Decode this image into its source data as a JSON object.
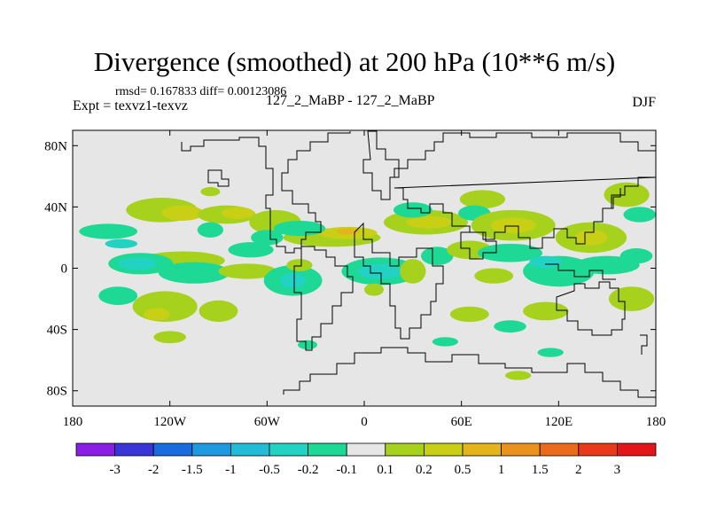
{
  "chart_data": {
    "type": "heatmap",
    "title": "Divergence (smoothed) at 200 hPa (10**6 m/s)",
    "stats": "rmsd= 0.167833 diff= 0.00123086",
    "experiment": "Expt = texvz1-texvz",
    "comparison": "127_2_MaBP - 127_2_MaBP",
    "season": "DJF",
    "xlim": [
      -180,
      180
    ],
    "ylim": [
      -90,
      90
    ],
    "x_ticks": [
      {
        "value": -180,
        "label": "180"
      },
      {
        "value": -120,
        "label": "120W"
      },
      {
        "value": -60,
        "label": "60W"
      },
      {
        "value": 0,
        "label": "0"
      },
      {
        "value": 60,
        "label": "60E"
      },
      {
        "value": 120,
        "label": "120E"
      },
      {
        "value": 180,
        "label": "180"
      }
    ],
    "y_ticks": [
      {
        "value": 80,
        "label": "80N"
      },
      {
        "value": 40,
        "label": "40N"
      },
      {
        "value": 0,
        "label": "0"
      },
      {
        "value": -40,
        "label": "40S"
      },
      {
        "value": -80,
        "label": "80S"
      }
    ],
    "colorbar": {
      "colors": [
        "#8a1ee6",
        "#3a35d6",
        "#1a6be0",
        "#1f9ae0",
        "#22bcd6",
        "#22d2c2",
        "#1ed995",
        "#e6e6e6",
        "#a6d21e",
        "#c9cf14",
        "#e3b41b",
        "#eb911e",
        "#ec6a1c",
        "#e83a1a",
        "#e3141a"
      ],
      "labels": [
        "-3",
        "-2",
        "-1.5",
        "-1",
        "-0.5",
        "-0.2",
        "-0.1",
        "0.1",
        "0.2",
        "0.5",
        "1",
        "1.5",
        "2",
        "3"
      ]
    },
    "features": [
      {
        "level": "-0.1",
        "lon": -158,
        "lat": 24,
        "rx": 18,
        "ry": 5
      },
      {
        "level": "-0.2",
        "lon": -150,
        "lat": 16,
        "rx": 10,
        "ry": 3
      },
      {
        "level": "-0.1",
        "lon": -152,
        "lat": -18,
        "rx": 12,
        "ry": 6
      },
      {
        "level": "0.1",
        "lon": -125,
        "lat": 38,
        "rx": 22,
        "ry": 8
      },
      {
        "level": "0.2",
        "lon": -112,
        "lat": 36,
        "rx": 13,
        "ry": 5
      },
      {
        "level": "0.1",
        "lon": -112,
        "lat": 5,
        "rx": 26,
        "ry": 6
      },
      {
        "level": "-0.1",
        "lon": -138,
        "lat": 3,
        "rx": 20,
        "ry": 7
      },
      {
        "level": "-0.2",
        "lon": -140,
        "lat": 3,
        "rx": 12,
        "ry": 4
      },
      {
        "level": "-0.2",
        "lon": -105,
        "lat": -5,
        "rx": 10,
        "ry": 4
      },
      {
        "level": "-0.1",
        "lon": -105,
        "lat": -3,
        "rx": 22,
        "ry": 7
      },
      {
        "level": "0.1",
        "lon": -123,
        "lat": -25,
        "rx": 20,
        "ry": 10
      },
      {
        "level": "0.2",
        "lon": -128,
        "lat": -30,
        "rx": 8,
        "ry": 4
      },
      {
        "level": "0.1",
        "lon": -90,
        "lat": -28,
        "rx": 12,
        "ry": 7
      },
      {
        "level": "0.1",
        "lon": -85,
        "lat": 35,
        "rx": 18,
        "ry": 6
      },
      {
        "level": "0.2",
        "lon": -78,
        "lat": 36,
        "rx": 10,
        "ry": 4
      },
      {
        "level": "-0.1",
        "lon": -95,
        "lat": 25,
        "rx": 8,
        "ry": 5
      },
      {
        "level": "-0.1",
        "lon": -70,
        "lat": 12,
        "rx": 14,
        "ry": 5
      },
      {
        "level": "0.1",
        "lon": -72,
        "lat": -2,
        "rx": 18,
        "ry": 5
      },
      {
        "level": "0.1",
        "lon": -55,
        "lat": 30,
        "rx": 16,
        "ry": 8
      },
      {
        "level": "0.1",
        "lon": -95,
        "lat": 50,
        "rx": 6,
        "ry": 3
      },
      {
        "level": "-0.1",
        "lon": -60,
        "lat": 20,
        "rx": 10,
        "ry": 5
      },
      {
        "level": "-0.1",
        "lon": -44,
        "lat": -8,
        "rx": 18,
        "ry": 10
      },
      {
        "level": "-0.2",
        "lon": -44,
        "lat": -8,
        "rx": 8,
        "ry": 5
      },
      {
        "level": "0.1",
        "lon": -40,
        "lat": 2,
        "rx": 8,
        "ry": 4
      },
      {
        "level": "0.1",
        "lon": -20,
        "lat": 20,
        "rx": 30,
        "ry": 6
      },
      {
        "level": "0.2",
        "lon": -10,
        "lat": 23,
        "rx": 18,
        "ry": 4
      },
      {
        "level": "0.5",
        "lon": -10,
        "lat": 24,
        "rx": 7,
        "ry": 2
      },
      {
        "level": "-0.1",
        "lon": -40,
        "lat": 26,
        "rx": 16,
        "ry": 5
      },
      {
        "level": "-0.1",
        "lon": 10,
        "lat": -2,
        "rx": 24,
        "ry": 9
      },
      {
        "level": "-0.2",
        "lon": 10,
        "lat": -2,
        "rx": 14,
        "ry": 5
      },
      {
        "level": "-0.1",
        "lon": -35,
        "lat": -50,
        "rx": 6,
        "ry": 3
      },
      {
        "level": "0.1",
        "lon": 6,
        "lat": -14,
        "rx": 6,
        "ry": 4
      },
      {
        "level": "0.1",
        "lon": 30,
        "lat": -2,
        "rx": 8,
        "ry": 8
      },
      {
        "level": "0.1",
        "lon": 38,
        "lat": 30,
        "rx": 26,
        "ry": 8
      },
      {
        "level": "0.2",
        "lon": 40,
        "lat": 30,
        "rx": 14,
        "ry": 4
      },
      {
        "level": "-0.1",
        "lon": 30,
        "lat": 38,
        "rx": 12,
        "ry": 5
      },
      {
        "level": "-0.1",
        "lon": 45,
        "lat": 8,
        "rx": 10,
        "ry": 6
      },
      {
        "level": "0.1",
        "lon": 65,
        "lat": 12,
        "rx": 14,
        "ry": 6
      },
      {
        "level": "0.1",
        "lon": 73,
        "lat": 45,
        "rx": 14,
        "ry": 6
      },
      {
        "level": "-0.1",
        "lon": 68,
        "lat": 36,
        "rx": 10,
        "ry": 5
      },
      {
        "level": "0.1",
        "lon": 92,
        "lat": 28,
        "rx": 26,
        "ry": 10
      },
      {
        "level": "0.2",
        "lon": 92,
        "lat": 28,
        "rx": 14,
        "ry": 5
      },
      {
        "level": "-0.1",
        "lon": 90,
        "lat": 10,
        "rx": 20,
        "ry": 6
      },
      {
        "level": "-0.1",
        "lon": 120,
        "lat": -2,
        "rx": 22,
        "ry": 10
      },
      {
        "level": "-0.2",
        "lon": 112,
        "lat": 4,
        "rx": 10,
        "ry": 4
      },
      {
        "level": "0.1",
        "lon": 80,
        "lat": -5,
        "rx": 12,
        "ry": 5
      },
      {
        "level": "0.1",
        "lon": 112,
        "lat": -28,
        "rx": 14,
        "ry": 6
      },
      {
        "level": "0.1",
        "lon": 140,
        "lat": 20,
        "rx": 22,
        "ry": 10
      },
      {
        "level": "0.2",
        "lon": 140,
        "lat": 20,
        "rx": 10,
        "ry": 5
      },
      {
        "level": "-0.1",
        "lon": 150,
        "lat": 2,
        "rx": 20,
        "ry": 6
      },
      {
        "level": "0.1",
        "lon": 162,
        "lat": 48,
        "rx": 14,
        "ry": 8
      },
      {
        "level": "-0.1",
        "lon": 170,
        "lat": 35,
        "rx": 10,
        "ry": 5
      },
      {
        "level": "0.1",
        "lon": 165,
        "lat": -20,
        "rx": 14,
        "ry": 8
      },
      {
        "level": "-0.1",
        "lon": 168,
        "lat": 8,
        "rx": 10,
        "ry": 5
      },
      {
        "level": "-0.1",
        "lon": 50,
        "lat": -48,
        "rx": 8,
        "ry": 3
      },
      {
        "level": "0.1",
        "lon": 65,
        "lat": -30,
        "rx": 12,
        "ry": 5
      },
      {
        "level": "-0.1",
        "lon": 90,
        "lat": -38,
        "rx": 10,
        "ry": 4
      },
      {
        "level": "0.1",
        "lon": 95,
        "lat": -70,
        "rx": 8,
        "ry": 3
      },
      {
        "level": "0.1",
        "lon": -120,
        "lat": -45,
        "rx": 10,
        "ry": 4
      },
      {
        "level": "-0.1",
        "lon": 115,
        "lat": -55,
        "rx": 8,
        "ry": 3
      }
    ]
  }
}
